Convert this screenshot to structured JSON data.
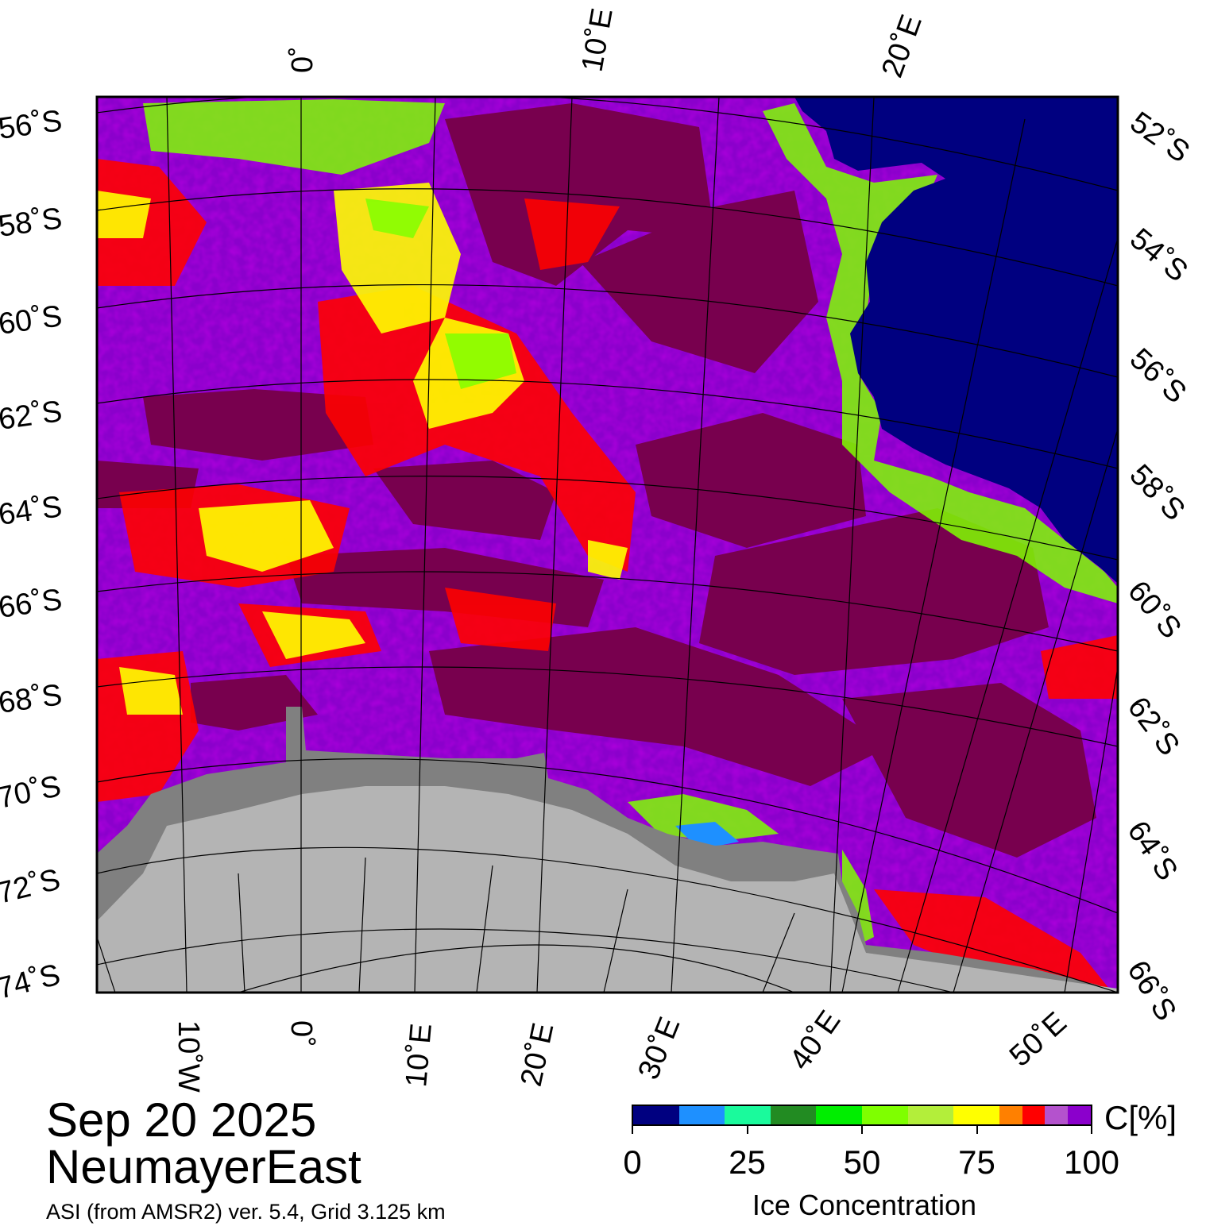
{
  "map": {
    "date": "Sep 20 2025",
    "region": "NeumayerEast",
    "source": "ASI (from AMSR2) ver. 5.4,  Grid 3.125 km",
    "colors": {
      "ocean": "#000080",
      "land": "#b4b4b4",
      "ice_shelf": "#808080",
      "frame": "#000000"
    },
    "lon_labels_top": [
      "0˚",
      "10˚E",
      "20˚E"
    ],
    "lon_labels_bottom": [
      "10˚W",
      "0˚",
      "10˚E",
      "20˚E",
      "30˚E",
      "40˚E",
      "50˚E"
    ],
    "lat_labels_left": [
      "56˚S",
      "58˚S",
      "60˚S",
      "62˚S",
      "64˚S",
      "66˚S",
      "68˚S",
      "70˚S",
      "72˚S",
      "74˚S"
    ],
    "lat_labels_right": [
      "52˚S",
      "54˚S",
      "56˚S",
      "58˚S",
      "60˚S",
      "62˚S",
      "64˚S",
      "66˚S"
    ]
  },
  "colorbar": {
    "title": "Ice Concentration",
    "unit": "C[%]",
    "tick_labels": [
      "0",
      "25",
      "50",
      "75",
      "100"
    ],
    "tick_values": [
      0,
      25,
      50,
      75,
      100
    ],
    "range": [
      0,
      100
    ],
    "colors": [
      "#000080",
      "#1e90ff",
      "#1afa9c",
      "#228b22",
      "#00ee00",
      "#7fff00",
      "#b3ee3a",
      "#ffff00",
      "#ff8000",
      "#ff0000",
      "#b452cd",
      "#8b00cc"
    ],
    "bounds": [
      0,
      10,
      20,
      30,
      40,
      50,
      60,
      70,
      80,
      85,
      90,
      95,
      100
    ]
  }
}
